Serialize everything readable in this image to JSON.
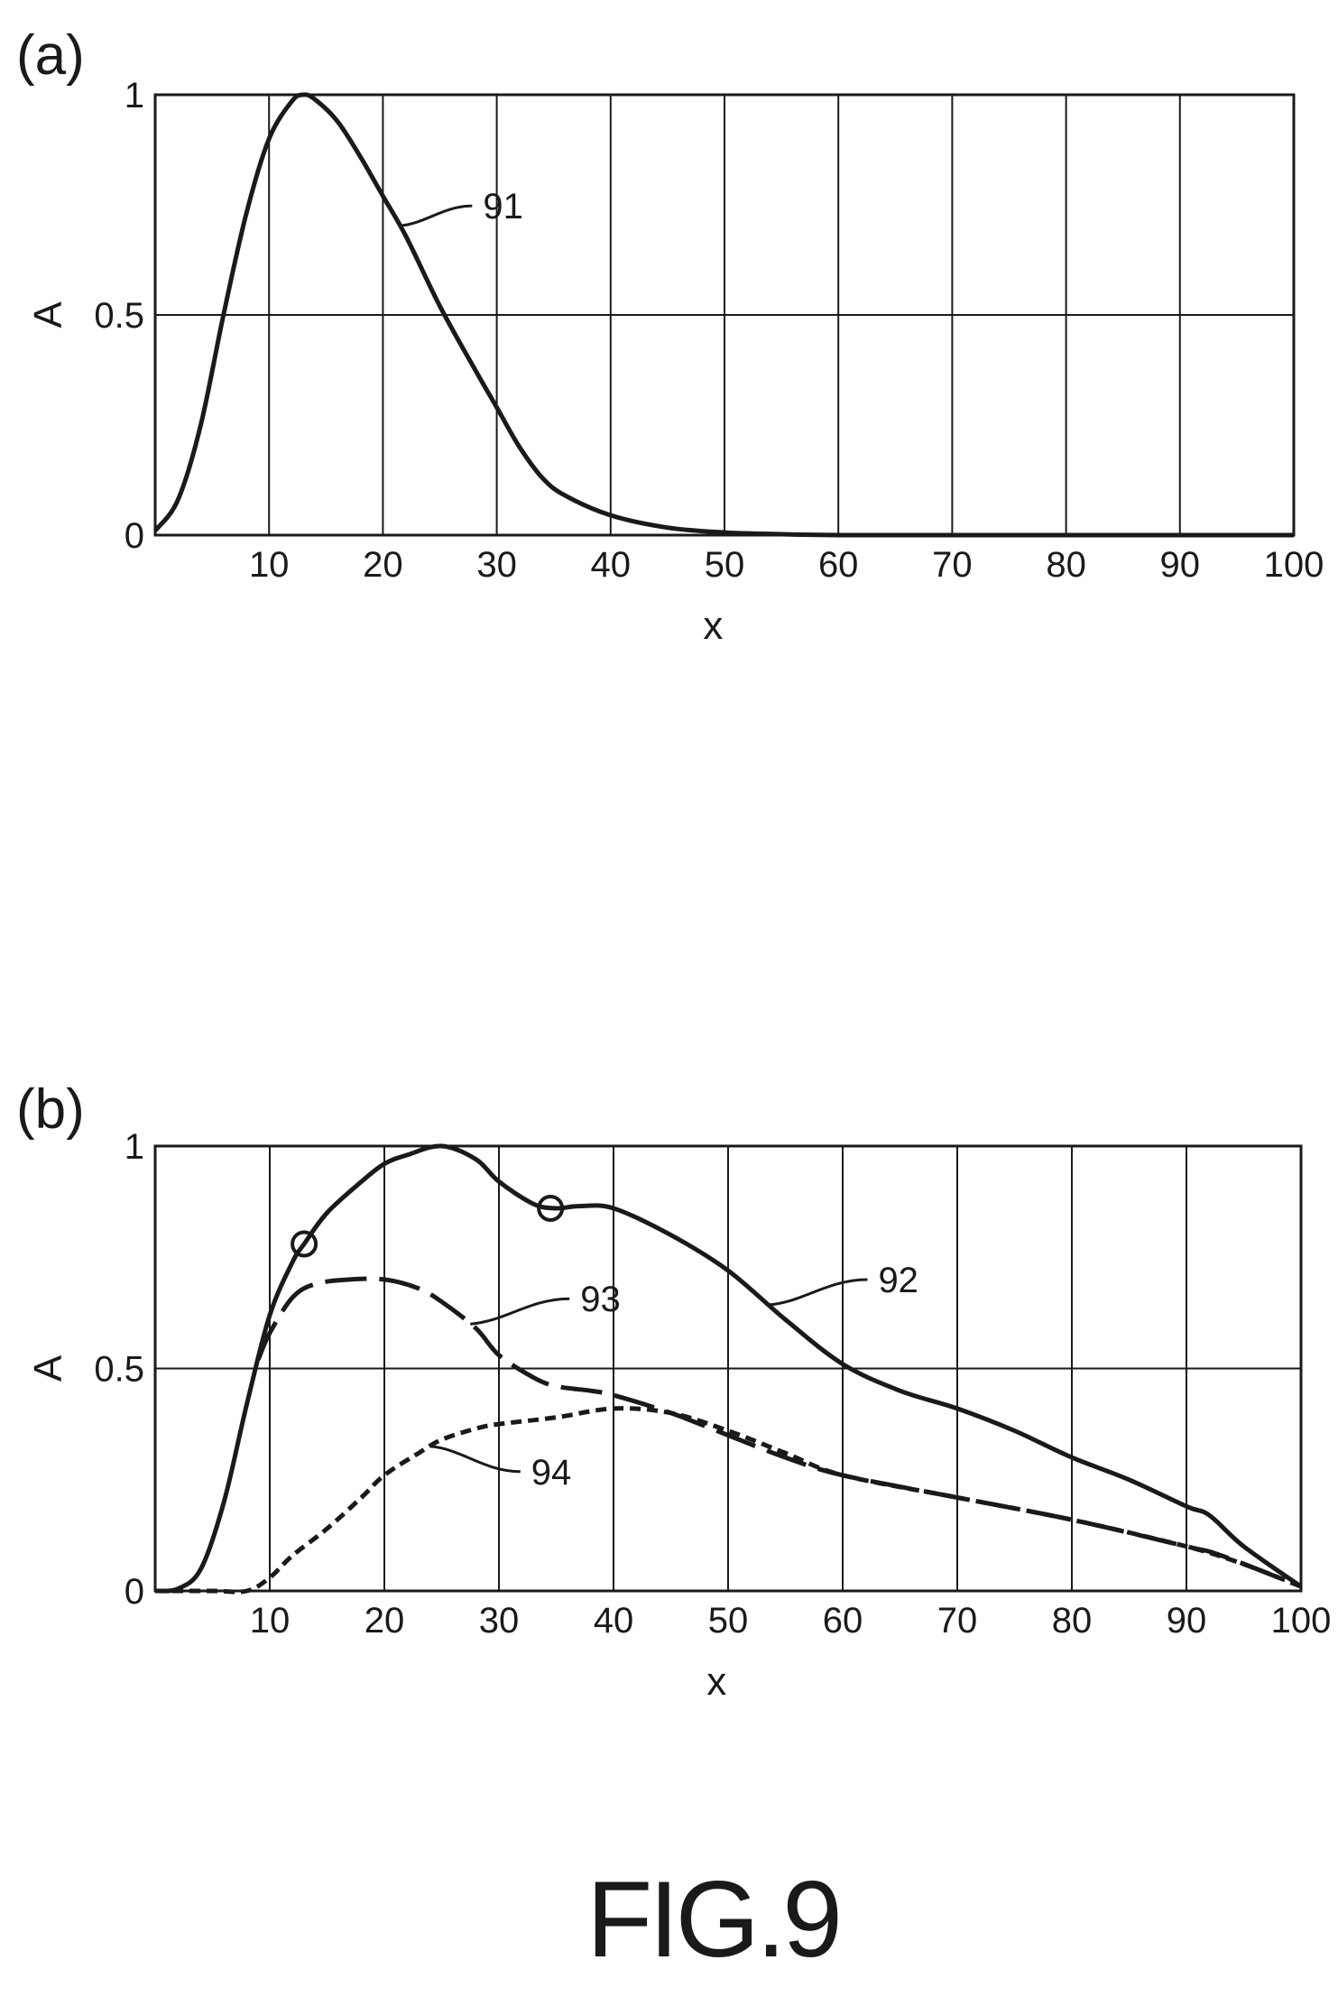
{
  "figure_caption": "FIG.9",
  "chart_data": [
    {
      "type": "line",
      "panel_label": "(a)",
      "xlabel": "x",
      "ylabel": "A",
      "xlim": [
        0,
        100
      ],
      "ylim": [
        0,
        1
      ],
      "x_ticks": [
        10,
        20,
        30,
        40,
        50,
        60,
        70,
        80,
        90,
        100
      ],
      "y_ticks": [
        {
          "value": 0,
          "label": "0"
        },
        {
          "value": 0.5,
          "label": "0.5"
        },
        {
          "value": 1,
          "label": "1"
        }
      ],
      "grid": true,
      "series": [
        {
          "ref": "91",
          "style": "solid",
          "x": [
            0,
            2,
            4,
            6,
            8,
            10,
            12,
            13,
            14,
            16,
            18,
            20,
            22,
            25,
            28,
            30,
            32,
            34,
            36,
            40,
            45,
            50,
            55,
            60,
            70,
            80,
            90,
            100
          ],
          "y": [
            0.01,
            0.08,
            0.25,
            0.5,
            0.73,
            0.9,
            0.985,
            1.0,
            0.99,
            0.94,
            0.86,
            0.77,
            0.68,
            0.52,
            0.38,
            0.29,
            0.2,
            0.13,
            0.09,
            0.045,
            0.017,
            0.006,
            0.002,
            0.0,
            0.0,
            0.0,
            0.0,
            0.0
          ]
        }
      ],
      "annotations": [
        {
          "text": "91",
          "series": "91",
          "at_x": 21.5
        }
      ]
    },
    {
      "type": "line",
      "panel_label": "(b)",
      "xlabel": "x",
      "ylabel": "A",
      "xlim": [
        0,
        100
      ],
      "ylim": [
        0,
        1
      ],
      "x_ticks": [
        10,
        20,
        30,
        40,
        50,
        60,
        70,
        80,
        90,
        100
      ],
      "y_ticks": [
        {
          "value": 0,
          "label": "0"
        },
        {
          "value": 0.5,
          "label": "0.5"
        },
        {
          "value": 1,
          "label": "1"
        }
      ],
      "grid": true,
      "series": [
        {
          "ref": "92",
          "style": "solid",
          "x": [
            0,
            2,
            4,
            6,
            8,
            10,
            12,
            13,
            15,
            18,
            20,
            22,
            25,
            28,
            30,
            33,
            35,
            37,
            40,
            45,
            50,
            55,
            60,
            65,
            70,
            75,
            80,
            85,
            90,
            92,
            95,
            100
          ],
          "y": [
            0.0,
            0.005,
            0.05,
            0.2,
            0.42,
            0.62,
            0.74,
            0.78,
            0.85,
            0.92,
            0.96,
            0.98,
            1.0,
            0.97,
            0.92,
            0.87,
            0.86,
            0.865,
            0.86,
            0.8,
            0.72,
            0.61,
            0.51,
            0.45,
            0.41,
            0.36,
            0.3,
            0.25,
            0.19,
            0.17,
            0.1,
            0.01
          ]
        },
        {
          "ref": "93",
          "style": "dashed",
          "x": [
            9,
            10,
            12,
            14,
            17,
            20,
            23,
            25,
            28,
            30,
            33,
            35,
            38,
            40,
            45,
            50,
            55,
            60,
            70,
            80,
            90,
            93,
            100
          ],
          "y": [
            0.52,
            0.58,
            0.66,
            0.69,
            0.7,
            0.7,
            0.68,
            0.65,
            0.59,
            0.53,
            0.48,
            0.46,
            0.45,
            0.44,
            0.4,
            0.35,
            0.3,
            0.26,
            0.21,
            0.16,
            0.1,
            0.08,
            0.01
          ]
        },
        {
          "ref": "94",
          "style": "dotted",
          "x": [
            0,
            5,
            8,
            10,
            12,
            15,
            18,
            20,
            23,
            25,
            28,
            30,
            35,
            40,
            45,
            50,
            55,
            60,
            70,
            80,
            90,
            95,
            100
          ],
          "y": [
            0.0,
            0.0,
            0.0,
            0.03,
            0.08,
            0.14,
            0.21,
            0.26,
            0.31,
            0.34,
            0.365,
            0.375,
            0.39,
            0.41,
            0.4,
            0.36,
            0.31,
            0.26,
            0.21,
            0.16,
            0.1,
            0.06,
            0.01
          ]
        }
      ],
      "markers": [
        {
          "shape": "circle",
          "x": 13,
          "y": 0.78
        },
        {
          "shape": "circle",
          "x": 34.5,
          "y": 0.86
        }
      ],
      "annotations": [
        {
          "text": "92",
          "series": "92",
          "at_x": 53.5
        },
        {
          "text": "93",
          "series": "93",
          "at_x": 27.5
        },
        {
          "text": "94",
          "series": "94",
          "at_x": 24
        }
      ]
    }
  ]
}
